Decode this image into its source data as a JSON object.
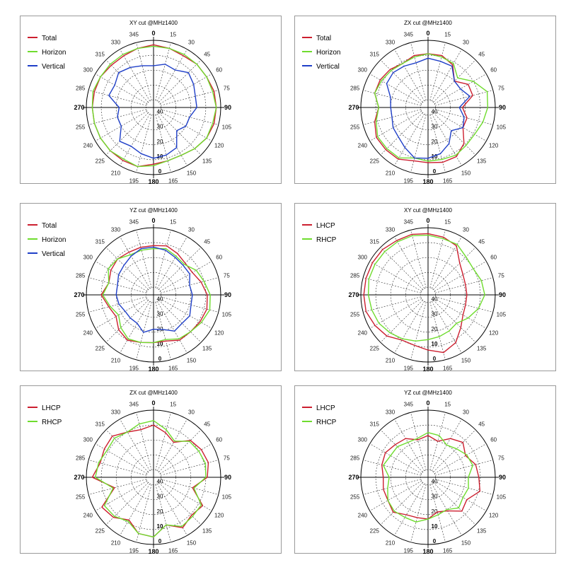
{
  "chart_data": [
    {
      "type": "polar-line",
      "title": "XY cut @MHz1400",
      "angles": [
        0,
        15,
        30,
        45,
        60,
        75,
        90,
        105,
        120,
        135,
        150,
        165,
        180,
        195,
        210,
        225,
        240,
        255,
        270,
        285,
        300,
        315,
        330,
        345
      ],
      "radial_ticks": [
        "0",
        "10",
        "20",
        "30",
        "40"
      ],
      "series": [
        {
          "name": "Total",
          "color": "#cc1f2f",
          "values": [
            3,
            4,
            5,
            4,
            4,
            3,
            3,
            3,
            4,
            6,
            8,
            8,
            7,
            4,
            4,
            4,
            4,
            4,
            4,
            4,
            4,
            5,
            5,
            4
          ]
        },
        {
          "name": "Horizon",
          "color": "#6fdc2e",
          "values": [
            4,
            4,
            4,
            4,
            4,
            4,
            3,
            4,
            4,
            6,
            8,
            8,
            6,
            4,
            5,
            4,
            4,
            4,
            4,
            3,
            4,
            4,
            4,
            4
          ]
        },
        {
          "name": "Vertical",
          "color": "#1f3fc8",
          "values": [
            17,
            15,
            16,
            12,
            14,
            16,
            16,
            20,
            20,
            23,
            14,
            12,
            11,
            13,
            15,
            13,
            20,
            20,
            22,
            14,
            15,
            12,
            14,
            16
          ]
        }
      ]
    },
    {
      "type": "polar-line",
      "title": "ZX cut @MHz1400",
      "angles": [
        0,
        15,
        30,
        45,
        60,
        75,
        90,
        105,
        120,
        135,
        150,
        165,
        180,
        195,
        210,
        225,
        240,
        255,
        270,
        285,
        300,
        315,
        330,
        345
      ],
      "radial_ticks": [
        "0",
        "10",
        "20",
        "30",
        "40"
      ],
      "series": [
        {
          "name": "Total",
          "color": "#cc1f2f",
          "values": [
            9,
            9,
            12,
            20,
            14,
            14,
            22,
            18,
            18,
            11,
            7,
            7,
            8,
            8,
            5,
            5,
            5,
            8,
            12,
            8,
            8,
            9,
            11,
            9
          ]
        },
        {
          "name": "Horizon",
          "color": "#6fdc2e",
          "values": [
            9,
            10,
            11,
            17,
            10,
            4,
            5,
            7,
            9,
            9,
            8,
            9,
            9,
            10,
            6,
            6,
            6,
            9,
            12,
            8,
            9,
            10,
            11,
            10
          ]
        },
        {
          "name": "Vertical",
          "color": "#1f3fc8",
          "values": [
            12,
            13,
            13,
            20,
            20,
            16,
            24,
            20,
            18,
            23,
            17,
            13,
            11,
            10,
            14,
            17,
            18,
            20,
            20,
            19,
            13,
            12,
            13,
            14
          ]
        }
      ]
    },
    {
      "type": "polar-line",
      "title": "YZ cut @MHz1400",
      "angles": [
        0,
        15,
        30,
        45,
        60,
        75,
        90,
        105,
        120,
        135,
        150,
        165,
        180,
        195,
        210,
        225,
        240,
        255,
        270,
        285,
        300,
        315,
        330,
        345
      ],
      "radial_ticks": [
        "0",
        "10",
        "20",
        "30",
        "40"
      ],
      "series": [
        {
          "name": "Total",
          "color": "#cc1f2f",
          "values": [
            12,
            11,
            13,
            15,
            15,
            12,
            9,
            8,
            9,
            10,
            10,
            13,
            13,
            12,
            10,
            12,
            16,
            14,
            10,
            14,
            12,
            11,
            12,
            12
          ]
        },
        {
          "name": "Horizon",
          "color": "#6fdc2e",
          "values": [
            14,
            13,
            15,
            16,
            12,
            10,
            7,
            6,
            8,
            10,
            11,
            14,
            13,
            12,
            11,
            14,
            18,
            15,
            11,
            14,
            10,
            11,
            14,
            14
          ]
        },
        {
          "name": "Vertical",
          "color": "#1f3fc8",
          "values": [
            13,
            14,
            16,
            17,
            17,
            20,
            19,
            19,
            17,
            18,
            17,
            21,
            22,
            19,
            23,
            23,
            23,
            21,
            20,
            20,
            18,
            17,
            15,
            13
          ]
        }
      ]
    },
    {
      "type": "polar-line",
      "title": "XY cut @MHz1400",
      "angles": [
        0,
        15,
        30,
        45,
        60,
        75,
        90,
        105,
        120,
        135,
        150,
        165,
        180,
        195,
        210,
        225,
        240,
        255,
        270,
        285,
        300,
        315,
        330,
        345
      ],
      "radial_ticks": [
        "0",
        "10",
        "20",
        "30",
        "40"
      ],
      "series": [
        {
          "name": "LHCP",
          "color": "#cc1f2f",
          "values": [
            4,
            5,
            7,
            15,
            18,
            19,
            19,
            19,
            18,
            14,
            8,
            5,
            8,
            10,
            10,
            6,
            4,
            2,
            2,
            2,
            2,
            2,
            3,
            3
          ]
        },
        {
          "name": "RHCP",
          "color": "#6fdc2e",
          "values": [
            5,
            6,
            6,
            9,
            10,
            8,
            7,
            10,
            14,
            18,
            17,
            16,
            15,
            13,
            11,
            9,
            7,
            6,
            5,
            4,
            4,
            4,
            4,
            4
          ]
        }
      ]
    },
    {
      "type": "polar-line",
      "title": "ZX cut @MHz1400",
      "angles": [
        0,
        15,
        30,
        45,
        60,
        75,
        90,
        105,
        120,
        135,
        150,
        165,
        180,
        195,
        210,
        225,
        240,
        255,
        270,
        285,
        300,
        315,
        330,
        345
      ],
      "radial_ticks": [
        "0",
        "10",
        "20",
        "30",
        "40"
      ],
      "series": [
        {
          "name": "LHCP",
          "color": "#cc1f2f",
          "values": [
            10,
            14,
            18,
            10,
            8,
            7,
            9,
            18,
            7,
            9,
            6,
            12,
            5,
            6,
            12,
            7,
            5,
            18,
            4,
            8,
            7,
            6,
            10,
            12
          ]
        },
        {
          "name": "RHCP",
          "color": "#6fdc2e",
          "values": [
            7,
            12,
            17,
            11,
            10,
            9,
            10,
            17,
            8,
            8,
            7,
            12,
            5,
            6,
            11,
            8,
            7,
            17,
            6,
            7,
            9,
            8,
            10,
            8
          ]
        }
      ]
    },
    {
      "type": "polar-line",
      "title": "YZ cut @MHz1400",
      "angles": [
        0,
        15,
        30,
        45,
        60,
        75,
        90,
        105,
        120,
        135,
        150,
        165,
        180,
        195,
        210,
        225,
        240,
        255,
        270,
        285,
        300,
        315,
        330,
        345
      ],
      "radial_ticks": [
        "0",
        "10",
        "20",
        "30",
        "40"
      ],
      "series": [
        {
          "name": "LHCP",
          "color": "#cc1f2f",
          "values": [
            17,
            20,
            15,
            12,
            16,
            12,
            11,
            9,
            15,
            13,
            19,
            21,
            17,
            17,
            16,
            12,
            14,
            14,
            15,
            13,
            12,
            14,
            15,
            19
          ]
        },
        {
          "name": "RHCP",
          "color": "#6fdc2e",
          "values": [
            15,
            16,
            20,
            18,
            15,
            14,
            18,
            17,
            18,
            16,
            20,
            19,
            17,
            14,
            14,
            13,
            14,
            17,
            19,
            14,
            16,
            16,
            18,
            18
          ]
        }
      ]
    }
  ]
}
